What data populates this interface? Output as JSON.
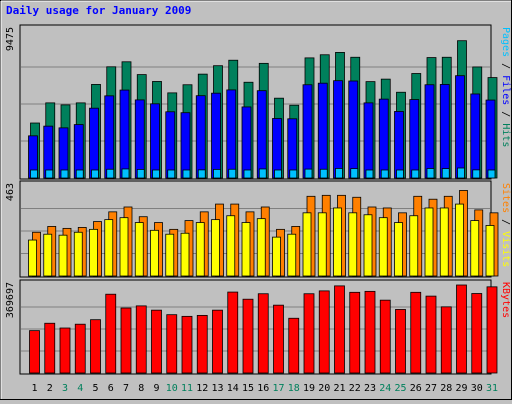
{
  "chart_data": {
    "type": "bar",
    "title": "Daily usage for January 2009",
    "categories": [
      "1",
      "2",
      "3",
      "4",
      "5",
      "6",
      "7",
      "8",
      "9",
      "10",
      "11",
      "12",
      "13",
      "14",
      "15",
      "16",
      "17",
      "18",
      "19",
      "20",
      "21",
      "22",
      "23",
      "24",
      "25",
      "26",
      "27",
      "28",
      "29",
      "30",
      "31"
    ],
    "weekend_days": [
      "3",
      "4",
      "10",
      "11",
      "17",
      "18",
      "24",
      "25",
      "31"
    ],
    "panels": [
      {
        "id": "hits-panel",
        "ymax_label": "9475",
        "ymax": 9475,
        "series_labels": [
          "Pages",
          "Files",
          "Hits"
        ],
        "series": [
          {
            "name": "Hits",
            "color": "#00805c",
            "values": [
              3520,
              4810,
              4680,
              4810,
              5990,
              7120,
              7440,
              6620,
              6180,
              5450,
              5970,
              6650,
              7190,
              7540,
              6130,
              7340,
              5110,
              4660,
              7690,
              7890,
              8040,
              7730,
              6170,
              6330,
              5490,
              6690,
              7710,
              7730,
              8790,
              7110,
              6430
            ]
          },
          {
            "name": "Files",
            "color": "#0000ff",
            "values": [
              2700,
              3320,
              3210,
              3420,
              4470,
              5260,
              5630,
              5000,
              4750,
              4240,
              4180,
              5270,
              5430,
              5640,
              4550,
              5590,
              3810,
              3790,
              5970,
              6070,
              6230,
              6210,
              4810,
              5050,
              4260,
              5020,
              5970,
              5990,
              6550,
              5380,
              4990
            ]
          },
          {
            "name": "Pages",
            "color": "#00c0ff",
            "values": [
              280,
              320,
              300,
              310,
              430,
              560,
              580,
              550,
              500,
              440,
              460,
              520,
              550,
              560,
              450,
              580,
              400,
              380,
              570,
              560,
              610,
              600,
              450,
              490,
              400,
              500,
              610,
              600,
              640,
              520,
              500
            ]
          }
        ],
        "separators": [
          " / ",
          " / "
        ]
      },
      {
        "id": "visits-panel",
        "ymax_label": "463",
        "ymax": 463,
        "series_labels": [
          "Sites",
          "Visits"
        ],
        "separators": [
          " / "
        ],
        "series": [
          {
            "name": "Visits",
            "color": "#ff8000",
            "values": [
              225,
              255,
              245,
              250,
              280,
              330,
              355,
              305,
              275,
              240,
              285,
              330,
              370,
              370,
              330,
              355,
              240,
              255,
              410,
              415,
              415,
              405,
              355,
              350,
              325,
              410,
              395,
              410,
              440,
              340,
              325
            ]
          },
          {
            "name": "Sites",
            "color": "#ffff00",
            "values": [
              185,
              215,
              210,
              225,
              240,
              290,
              300,
              275,
              235,
              215,
              220,
              275,
              290,
              310,
              275,
              295,
              200,
              215,
              325,
              325,
              350,
              325,
              315,
              300,
              275,
              310,
              350,
              350,
              370,
              285,
              260
            ]
          }
        ]
      },
      {
        "id": "kbytes-panel",
        "ymax_label": "369697",
        "ymax": 369697,
        "series_labels": [
          "KBytes"
        ],
        "separators": [],
        "series": [
          {
            "name": "KBytes",
            "color": "#ff0000",
            "values": [
              178000,
              209000,
              189000,
              205000,
              224000,
              331000,
              273000,
              282000,
              264000,
              245000,
              238000,
              242000,
              264000,
              340000,
              310000,
              333000,
              285000,
              230000,
              333000,
              345000,
              366000,
              339000,
              343000,
              306000,
              267000,
              339000,
              323000,
              278000,
              369697,
              334000,
              362000
            ]
          }
        ]
      }
    ],
    "colors": {
      "title": "#0000ff",
      "label_pages": "#00c0ff",
      "label_files": "#0000ff",
      "label_hits": "#00805c",
      "label_sites": "#ff8000",
      "label_visits": "#ffff00",
      "label_kbytes": "#ff0000",
      "label_separator": "#000000",
      "weekday": "#000000",
      "weekend": "#00805c",
      "gridline": "#808080"
    }
  }
}
